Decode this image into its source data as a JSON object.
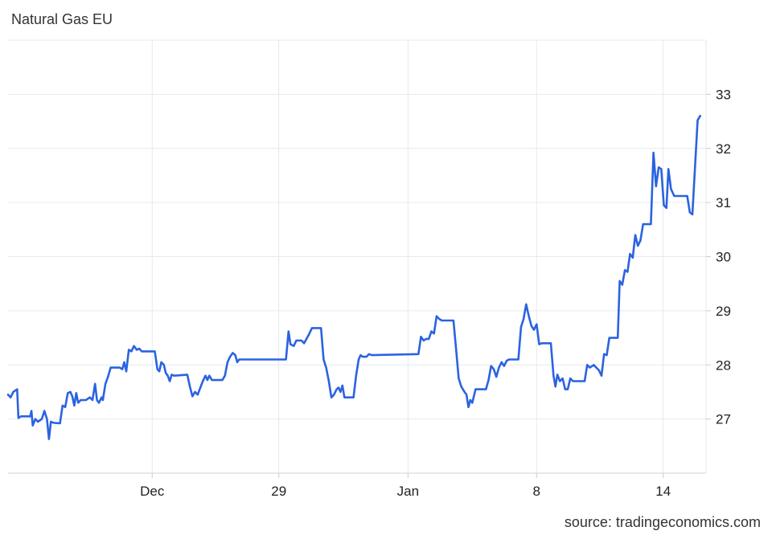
{
  "chart_data": {
    "type": "line",
    "title": "Natural Gas EU",
    "source": "source: tradingeconomics.com",
    "xlabel": "",
    "ylabel": "",
    "x_tick_labels": [
      {
        "label": "Dec",
        "t": 22.2
      },
      {
        "label": "29",
        "t": 41.7
      },
      {
        "label": "Jan",
        "t": 61.6
      },
      {
        "label": "8",
        "t": 81.4
      },
      {
        "label": "14",
        "t": 100.9
      }
    ],
    "y_ticks": [
      27,
      28,
      29,
      30,
      31,
      32,
      33
    ],
    "ylim": [
      26.0,
      34.0
    ],
    "xlim": [
      0,
      104
    ],
    "y_axis_position": "right",
    "grid": true,
    "color": "#2b63e0",
    "series": [
      {
        "values": [
          [
            0.0,
            27.45
          ],
          [
            0.4,
            27.4
          ],
          [
            0.8,
            27.5
          ],
          [
            1.4,
            27.55
          ],
          [
            1.6,
            27.02
          ],
          [
            2.0,
            27.05
          ],
          [
            3.4,
            27.05
          ],
          [
            3.6,
            27.15
          ],
          [
            3.8,
            26.88
          ],
          [
            4.2,
            27.0
          ],
          [
            4.6,
            26.95
          ],
          [
            5.2,
            27.0
          ],
          [
            5.6,
            27.15
          ],
          [
            6.0,
            27.0
          ],
          [
            6.3,
            26.63
          ],
          [
            6.6,
            26.95
          ],
          [
            7.0,
            26.93
          ],
          [
            8.0,
            26.92
          ],
          [
            8.4,
            27.25
          ],
          [
            8.8,
            27.22
          ],
          [
            9.2,
            27.48
          ],
          [
            9.6,
            27.5
          ],
          [
            9.9,
            27.42
          ],
          [
            10.2,
            27.25
          ],
          [
            10.5,
            27.48
          ],
          [
            10.8,
            27.3
          ],
          [
            11.2,
            27.35
          ],
          [
            12.0,
            27.35
          ],
          [
            12.6,
            27.4
          ],
          [
            13.0,
            27.35
          ],
          [
            13.4,
            27.65
          ],
          [
            13.7,
            27.35
          ],
          [
            14.0,
            27.3
          ],
          [
            14.4,
            27.4
          ],
          [
            14.6,
            27.35
          ],
          [
            15.0,
            27.65
          ],
          [
            15.4,
            27.78
          ],
          [
            15.8,
            27.95
          ],
          [
            17.2,
            27.95
          ],
          [
            17.6,
            27.92
          ],
          [
            17.9,
            28.05
          ],
          [
            18.2,
            27.88
          ],
          [
            18.6,
            28.28
          ],
          [
            19.0,
            28.25
          ],
          [
            19.4,
            28.35
          ],
          [
            19.8,
            28.28
          ],
          [
            20.2,
            28.3
          ],
          [
            20.6,
            28.25
          ],
          [
            22.6,
            28.25
          ],
          [
            23.0,
            27.92
          ],
          [
            23.3,
            27.88
          ],
          [
            23.6,
            28.05
          ],
          [
            24.0,
            28.0
          ],
          [
            24.3,
            27.85
          ],
          [
            24.6,
            27.8
          ],
          [
            24.9,
            27.7
          ],
          [
            25.2,
            27.82
          ],
          [
            25.6,
            27.8
          ],
          [
            27.6,
            27.82
          ],
          [
            28.0,
            27.6
          ],
          [
            28.4,
            27.42
          ],
          [
            28.8,
            27.5
          ],
          [
            29.2,
            27.45
          ],
          [
            30.0,
            27.7
          ],
          [
            30.4,
            27.8
          ],
          [
            30.7,
            27.72
          ],
          [
            31.0,
            27.8
          ],
          [
            31.4,
            27.72
          ],
          [
            33.0,
            27.72
          ],
          [
            33.4,
            27.8
          ],
          [
            33.8,
            28.05
          ],
          [
            34.2,
            28.15
          ],
          [
            34.6,
            28.22
          ],
          [
            35.0,
            28.18
          ],
          [
            35.3,
            28.05
          ],
          [
            35.6,
            28.1
          ],
          [
            42.8,
            28.1
          ],
          [
            43.2,
            28.62
          ],
          [
            43.5,
            28.38
          ],
          [
            44.0,
            28.35
          ],
          [
            44.4,
            28.45
          ],
          [
            45.2,
            28.45
          ],
          [
            45.6,
            28.4
          ],
          [
            46.4,
            28.58
          ],
          [
            46.8,
            28.68
          ],
          [
            47.6,
            28.68
          ],
          [
            48.2,
            28.68
          ],
          [
            48.6,
            28.1
          ],
          [
            49.0,
            27.95
          ],
          [
            49.4,
            27.7
          ],
          [
            49.8,
            27.4
          ],
          [
            50.2,
            27.45
          ],
          [
            50.6,
            27.55
          ],
          [
            50.9,
            27.58
          ],
          [
            51.2,
            27.5
          ],
          [
            51.5,
            27.62
          ],
          [
            51.8,
            27.4
          ],
          [
            53.2,
            27.4
          ],
          [
            53.6,
            27.8
          ],
          [
            54.0,
            28.1
          ],
          [
            54.3,
            28.18
          ],
          [
            54.6,
            28.15
          ],
          [
            55.2,
            28.15
          ],
          [
            55.6,
            28.2
          ],
          [
            56.0,
            28.18
          ],
          [
            63.2,
            28.2
          ],
          [
            63.6,
            28.52
          ],
          [
            64.0,
            28.45
          ],
          [
            64.4,
            28.48
          ],
          [
            64.8,
            28.48
          ],
          [
            65.2,
            28.62
          ],
          [
            65.6,
            28.58
          ],
          [
            66.0,
            28.9
          ],
          [
            66.4,
            28.85
          ],
          [
            66.8,
            28.82
          ],
          [
            68.6,
            28.82
          ],
          [
            69.0,
            28.3
          ],
          [
            69.4,
            27.75
          ],
          [
            69.8,
            27.6
          ],
          [
            70.2,
            27.52
          ],
          [
            70.6,
            27.45
          ],
          [
            70.9,
            27.22
          ],
          [
            71.2,
            27.35
          ],
          [
            71.5,
            27.3
          ],
          [
            72.0,
            27.55
          ],
          [
            73.6,
            27.55
          ],
          [
            74.0,
            27.72
          ],
          [
            74.4,
            27.98
          ],
          [
            74.8,
            27.92
          ],
          [
            75.2,
            27.78
          ],
          [
            75.6,
            27.95
          ],
          [
            76.0,
            28.05
          ],
          [
            76.4,
            27.98
          ],
          [
            76.8,
            28.08
          ],
          [
            77.2,
            28.1
          ],
          [
            78.6,
            28.1
          ],
          [
            79.0,
            28.7
          ],
          [
            79.4,
            28.85
          ],
          [
            79.8,
            29.12
          ],
          [
            80.2,
            28.9
          ],
          [
            80.6,
            28.72
          ],
          [
            81.0,
            28.65
          ],
          [
            81.4,
            28.75
          ],
          [
            81.8,
            28.38
          ],
          [
            82.2,
            28.4
          ],
          [
            83.6,
            28.4
          ],
          [
            84.0,
            27.8
          ],
          [
            84.3,
            27.6
          ],
          [
            84.6,
            27.82
          ],
          [
            85.0,
            27.7
          ],
          [
            85.4,
            27.75
          ],
          [
            85.8,
            27.55
          ],
          [
            86.2,
            27.55
          ],
          [
            86.6,
            27.75
          ],
          [
            87.0,
            27.7
          ],
          [
            88.8,
            27.7
          ],
          [
            89.2,
            28.0
          ],
          [
            89.6,
            27.95
          ],
          [
            90.2,
            28.0
          ],
          [
            91.0,
            27.9
          ],
          [
            91.4,
            27.8
          ],
          [
            91.8,
            28.2
          ],
          [
            92.2,
            28.18
          ],
          [
            92.6,
            28.5
          ],
          [
            93.6,
            28.5
          ],
          [
            93.9,
            28.5
          ],
          [
            94.2,
            29.55
          ],
          [
            94.6,
            29.48
          ],
          [
            95.0,
            29.75
          ],
          [
            95.4,
            29.72
          ],
          [
            95.8,
            30.05
          ],
          [
            96.2,
            29.98
          ],
          [
            96.6,
            30.4
          ],
          [
            97.0,
            30.2
          ],
          [
            97.4,
            30.3
          ],
          [
            97.8,
            30.6
          ],
          [
            99.0,
            30.6
          ],
          [
            99.4,
            31.92
          ],
          [
            99.8,
            31.3
          ],
          [
            100.2,
            31.65
          ],
          [
            100.6,
            31.62
          ],
          [
            101.0,
            30.95
          ],
          [
            101.4,
            30.9
          ],
          [
            101.7,
            31.62
          ],
          [
            102.1,
            31.25
          ],
          [
            102.6,
            31.12
          ],
          [
            103.4,
            31.12
          ],
          [
            104.6,
            31.12
          ],
          [
            105.0,
            30.82
          ],
          [
            105.4,
            30.78
          ],
          [
            106.2,
            32.52
          ],
          [
            106.6,
            32.6
          ]
        ]
      }
    ]
  }
}
